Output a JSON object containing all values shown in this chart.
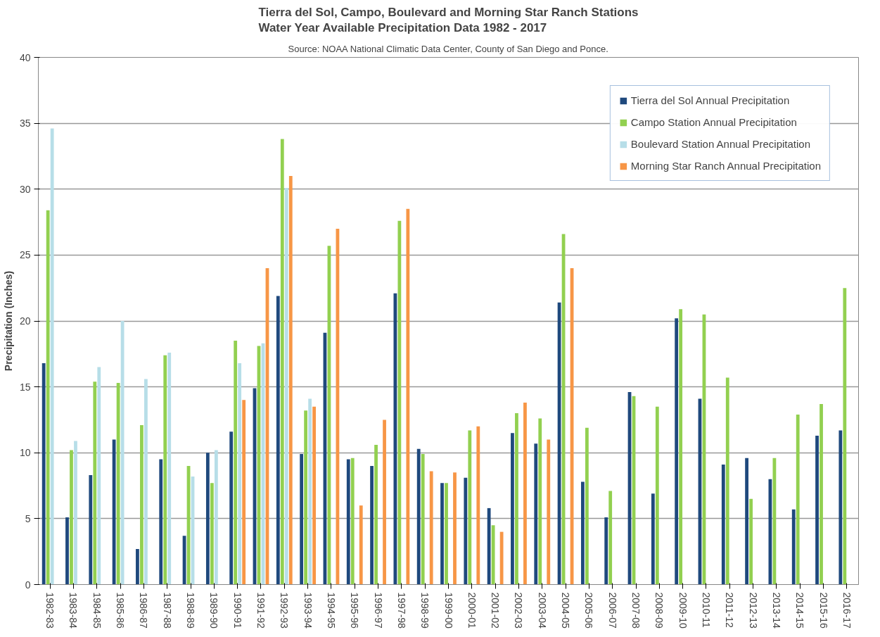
{
  "chart_data": {
    "type": "bar",
    "title": "Tierra del Sol, Campo, Boulevard and Morning Star Ranch Stations\nWater Year Available Precipitation Data 1982 - 2017",
    "annotations": [
      "Source: NOAA National Climatic Data Center, County of San Diego and Ponce."
    ],
    "ylabel": "Precipitation (Inches)",
    "categories": [
      "1982-83",
      "1983-84",
      "1984-85",
      "1985-86",
      "1986-87",
      "1987-88",
      "1988-89",
      "1989-90",
      "1990-91",
      "1991-92",
      "1992-93",
      "1993-94",
      "1994-95",
      "1995-96",
      "1996-97",
      "1997-98",
      "1998-99",
      "1999-00",
      "2000-01",
      "2001-02",
      "2002-03",
      "2003-04",
      "2004-05",
      "2005-06",
      "2006-07",
      "2007-08",
      "2008-09",
      "2009-10",
      "2010-11",
      "2011-12",
      "2012-13",
      "2013-14",
      "2014-15",
      "2015-16",
      "2016-17"
    ],
    "series": [
      {
        "name": "Tierra del Sol Annual Precipitation",
        "color": "#1f497d",
        "values": [
          16.8,
          5.1,
          8.3,
          11.0,
          2.7,
          9.5,
          3.7,
          10.0,
          11.6,
          14.9,
          21.9,
          9.9,
          19.1,
          9.5,
          9.0,
          22.1,
          10.3,
          7.7,
          8.1,
          5.8,
          11.5,
          10.7,
          21.4,
          7.8,
          5.1,
          14.6,
          6.9,
          20.2,
          14.1,
          9.1,
          9.6,
          8.0,
          5.7,
          11.3,
          11.7
        ]
      },
      {
        "name": "Campo Station Annual Precipitation",
        "color": "#92d050",
        "values": [
          28.4,
          10.2,
          15.4,
          15.3,
          12.1,
          17.4,
          9.0,
          7.7,
          18.5,
          18.1,
          33.8,
          13.2,
          25.7,
          9.6,
          10.6,
          27.6,
          9.9,
          7.7,
          11.7,
          4.5,
          13.0,
          12.6,
          26.6,
          11.9,
          7.1,
          14.3,
          13.5,
          20.9,
          20.5,
          15.7,
          6.5,
          9.6,
          12.9,
          13.7,
          22.5
        ]
      },
      {
        "name": "Boulevard Station Annual Precipitation",
        "color": "#b7dee8",
        "values": [
          34.6,
          10.9,
          16.5,
          20.0,
          15.6,
          17.6,
          8.2,
          10.2,
          16.8,
          18.3,
          30.1,
          14.1,
          null,
          null,
          null,
          null,
          null,
          null,
          null,
          null,
          null,
          null,
          null,
          null,
          null,
          null,
          null,
          null,
          null,
          null,
          null,
          null,
          null,
          null,
          null
        ]
      },
      {
        "name": "Morning Star Ranch Annual Precipitation",
        "color": "#f79646",
        "values": [
          null,
          null,
          null,
          null,
          null,
          null,
          null,
          null,
          14.0,
          24.0,
          31.0,
          13.5,
          27.0,
          6.0,
          12.5,
          28.5,
          8.6,
          8.5,
          12.0,
          4.0,
          13.8,
          11.0,
          24.0,
          null,
          null,
          null,
          null,
          null,
          null,
          null,
          null,
          null,
          null,
          null,
          null
        ]
      }
    ],
    "ylim": [
      0,
      40
    ],
    "yticks": [
      0,
      5,
      10,
      15,
      20,
      25,
      30,
      35,
      40
    ],
    "grid": "y",
    "legend": "top right"
  }
}
